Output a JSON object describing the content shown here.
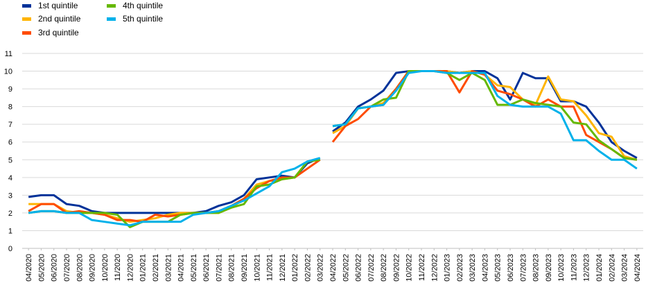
{
  "chart_data": {
    "type": "line",
    "title": "",
    "xlabel": "",
    "ylabel": "",
    "ylim": [
      0,
      11
    ],
    "yticks": [
      0,
      1,
      2,
      3,
      4,
      5,
      6,
      7,
      8,
      9,
      10,
      11
    ],
    "grid": "horizontal",
    "legend_position": "top-left",
    "x": [
      "04/2020",
      "05/2020",
      "06/2020",
      "07/2020",
      "08/2020",
      "09/2020",
      "10/2020",
      "11/2020",
      "12/2020",
      "01/2021",
      "02/2021",
      "03/2021",
      "04/2021",
      "05/2021",
      "06/2021",
      "07/2021",
      "08/2021",
      "09/2021",
      "10/2021",
      "11/2021",
      "12/2021",
      "01/2022",
      "02/2022",
      "03/2022",
      "04/2022",
      "05/2022",
      "06/2022",
      "07/2022",
      "08/2022",
      "09/2022",
      "10/2022",
      "11/2022",
      "12/2022",
      "01/2023",
      "02/2023",
      "03/2023",
      "04/2023",
      "05/2023",
      "06/2023",
      "07/2023",
      "08/2023",
      "09/2023",
      "10/2023",
      "11/2023",
      "12/2023",
      "01/2024",
      "02/2024",
      "03/2024",
      "04/2024"
    ],
    "x_tick_labels": [
      "04/2020",
      "05/2020",
      "06/2020",
      "07/2020",
      "08/2020",
      "09/2020",
      "10/2020",
      "11/2020",
      "12/2020",
      "01/2021",
      "02/2021",
      "03/2021",
      "04/2021",
      "05/2021",
      "06/2021",
      "07/2021",
      "08/2021",
      "09/2021",
      "10/2021",
      "11/2021",
      "12/2021",
      "01/2022",
      "02/2022",
      "03/2022",
      "04/2022",
      "05/2022",
      "06/2022",
      "07/2022",
      "08/2022",
      "09/2022",
      "10/2022",
      "11/2022",
      "12/2022",
      "01/2023",
      "02/2023",
      "03/2023",
      "04/2023",
      "05/2023",
      "06/2023",
      "07/2023",
      "08/2023",
      "09/2023",
      "10/2023",
      "11/2023",
      "12/2023",
      "01/2024",
      "02/2024",
      "03/2024",
      "04/2024"
    ],
    "series": [
      {
        "name": "1st quintile",
        "color": "#003299",
        "breaks_after": [
          23
        ],
        "values": [
          2.9,
          3.0,
          3.0,
          2.5,
          2.4,
          2.1,
          2.0,
          2.0,
          2.0,
          2.0,
          2.0,
          2.0,
          2.0,
          2.0,
          2.1,
          2.4,
          2.6,
          3.0,
          3.9,
          4.0,
          4.1,
          4.0,
          4.8,
          5.1,
          6.6,
          7.1,
          8.0,
          8.4,
          8.9,
          9.9,
          10.0,
          10.0,
          10.0,
          10.0,
          9.9,
          10.0,
          10.0,
          9.6,
          8.4,
          9.9,
          9.6,
          9.6,
          8.3,
          8.3,
          8.0,
          7.1,
          6.0,
          5.5,
          5.1
        ]
      },
      {
        "name": "2nd quintile",
        "color": "#FFB400",
        "breaks_after": [
          23
        ],
        "values": [
          2.5,
          2.5,
          2.5,
          2.1,
          2.0,
          2.0,
          1.9,
          1.7,
          1.5,
          1.6,
          1.7,
          1.9,
          2.0,
          2.0,
          2.0,
          2.0,
          2.3,
          2.8,
          3.6,
          3.8,
          3.9,
          4.0,
          4.9,
          5.0,
          6.5,
          6.9,
          7.9,
          8.0,
          8.2,
          9.0,
          10.0,
          10.0,
          10.0,
          10.0,
          9.9,
          10.0,
          9.8,
          9.2,
          9.1,
          8.4,
          8.1,
          9.7,
          8.4,
          8.3,
          7.5,
          6.5,
          6.3,
          5.2,
          5.0
        ]
      },
      {
        "name": "3rd quintile",
        "color": "#FF4B00",
        "breaks_after": [
          23
        ],
        "values": [
          2.1,
          2.5,
          2.5,
          2.0,
          2.1,
          2.0,
          1.9,
          1.6,
          1.6,
          1.5,
          1.9,
          1.8,
          1.9,
          2.0,
          2.0,
          2.1,
          2.4,
          2.8,
          3.4,
          3.8,
          4.0,
          4.0,
          4.5,
          5.0,
          6.0,
          6.9,
          7.3,
          8.0,
          8.1,
          9.0,
          10.0,
          10.0,
          10.0,
          10.0,
          8.8,
          10.0,
          9.8,
          8.9,
          8.7,
          8.4,
          8.0,
          8.4,
          8.0,
          8.0,
          6.4,
          6.0,
          5.6,
          5.1,
          5.0
        ]
      },
      {
        "name": "4th quintile",
        "color": "#65B800",
        "breaks_after": [
          23
        ],
        "values": [
          2.0,
          2.1,
          2.1,
          2.0,
          2.0,
          2.0,
          2.0,
          1.9,
          1.2,
          1.5,
          1.5,
          1.5,
          1.9,
          2.0,
          2.0,
          2.0,
          2.3,
          2.5,
          3.5,
          3.6,
          3.9,
          4.0,
          4.9,
          5.0,
          6.9,
          7.0,
          7.9,
          8.0,
          8.4,
          8.5,
          10.0,
          10.0,
          10.0,
          9.9,
          9.5,
          9.9,
          9.5,
          8.1,
          8.1,
          8.4,
          8.2,
          8.1,
          8.0,
          7.1,
          7.0,
          6.1,
          5.6,
          5.1,
          5.0
        ]
      },
      {
        "name": "5th quintile",
        "color": "#00B1EA",
        "breaks_after": [
          23
        ],
        "values": [
          2.0,
          2.1,
          2.1,
          2.0,
          2.0,
          1.6,
          1.5,
          1.4,
          1.3,
          1.5,
          1.5,
          1.5,
          1.5,
          1.9,
          2.0,
          2.1,
          2.4,
          2.7,
          3.1,
          3.5,
          4.3,
          4.5,
          4.9,
          5.1,
          6.9,
          7.0,
          7.9,
          8.0,
          8.1,
          8.9,
          9.9,
          10.0,
          10.0,
          9.9,
          9.9,
          9.9,
          9.9,
          8.6,
          8.1,
          8.0,
          8.0,
          8.0,
          7.6,
          6.1,
          6.1,
          5.5,
          5.0,
          5.0,
          4.5
        ]
      }
    ]
  }
}
